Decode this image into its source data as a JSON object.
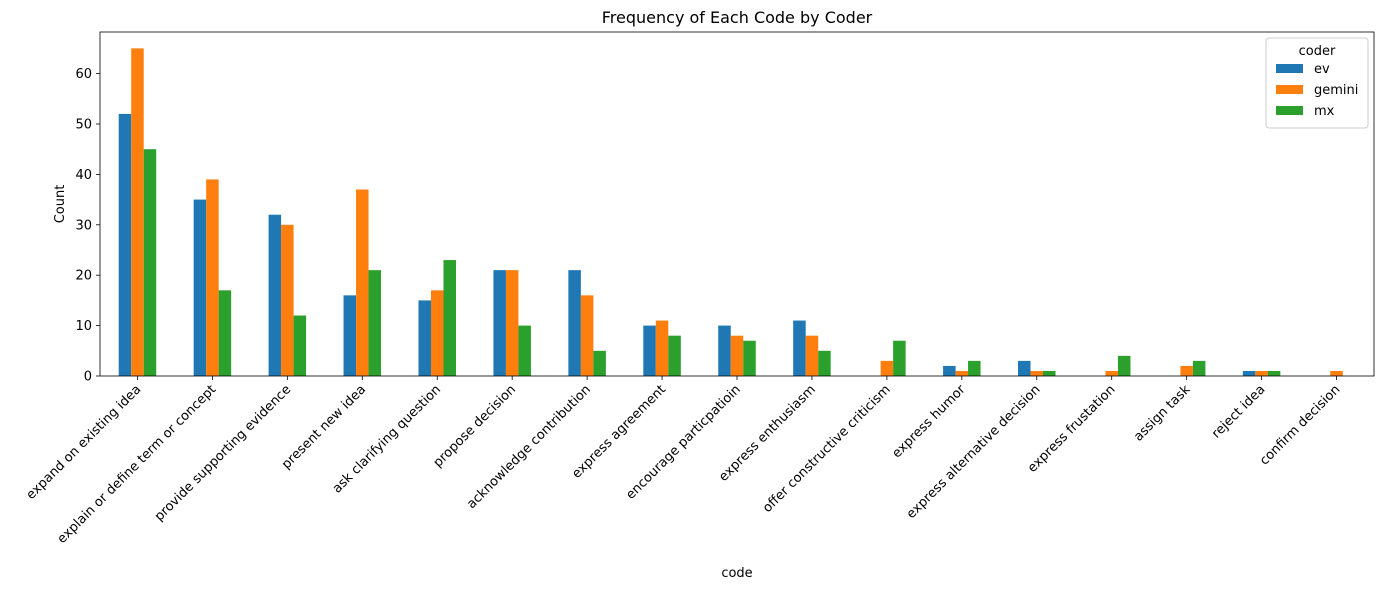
{
  "chart_data": {
    "type": "bar",
    "title": "Frequency of Each Code by Coder",
    "xlabel": "code",
    "ylabel": "Count",
    "ylim": [
      0,
      68.25
    ],
    "yticks": [
      0,
      10,
      20,
      30,
      40,
      50,
      60
    ],
    "grid": false,
    "legend": {
      "title": "coder",
      "placement": "top-right"
    },
    "categories": [
      "expand on existing idea",
      "explain or define term or concept",
      "provide supporting evidence",
      "present new idea",
      "ask clarifying question",
      "propose decision",
      "acknowledge contribution",
      "express agreement",
      "encourage particpatioin",
      "express enthusiasm",
      "offer constructive criticism",
      "express humor",
      "express alternative decision",
      "express frustation",
      "assign task",
      "reject idea",
      "confirm decision"
    ],
    "series": [
      {
        "name": "ev",
        "color": "#1f77b4",
        "values": [
          52,
          35,
          32,
          16,
          15,
          21,
          21,
          10,
          10,
          11,
          0,
          2,
          3,
          0,
          0,
          1,
          0
        ]
      },
      {
        "name": "gemini",
        "color": "#ff7f0e",
        "values": [
          65,
          39,
          30,
          37,
          17,
          21,
          16,
          11,
          8,
          8,
          3,
          1,
          1,
          1,
          2,
          1,
          1
        ]
      },
      {
        "name": "mx",
        "color": "#2ca02c",
        "values": [
          45,
          17,
          12,
          21,
          23,
          10,
          5,
          8,
          7,
          5,
          7,
          3,
          1,
          4,
          3,
          1,
          0
        ]
      }
    ]
  }
}
